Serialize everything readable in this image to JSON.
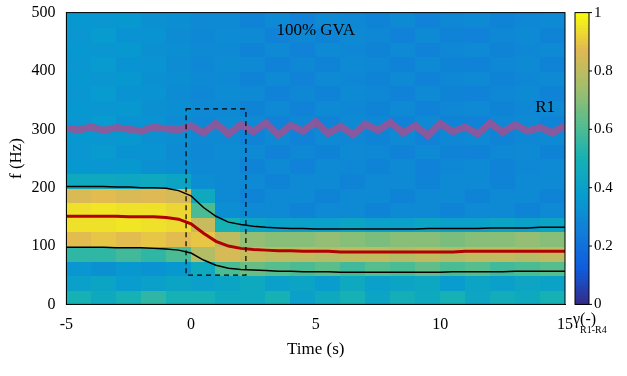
{
  "chart_data": {
    "type": "heatmap",
    "x_label": "Time (s)",
    "y_label": "f (Hz)",
    "xlim": [
      -5,
      15
    ],
    "xticks": [
      -5,
      0,
      5,
      10,
      15
    ],
    "ylim": [
      0,
      500
    ],
    "yticks": [
      0,
      100,
      200,
      300,
      400,
      500
    ],
    "grid": false,
    "x": [
      -5,
      -4.5,
      -4,
      -3.5,
      -3,
      -2.5,
      -2,
      -1.5,
      -1,
      -0.5,
      0,
      0.5,
      1,
      1.5,
      2,
      2.5,
      3,
      3.5,
      4,
      4.5,
      5,
      5.5,
      6,
      6.5,
      7,
      7.5,
      8,
      8.5,
      9,
      9.5,
      10,
      10.5,
      11,
      11.5,
      12,
      12.5,
      13,
      13.5,
      14,
      14.5,
      15
    ],
    "series": [
      {
        "name": "R1",
        "type": "line",
        "color": "#b24a8a",
        "line_style": "solid",
        "values": [
          302,
          299,
          304,
          298,
          303,
          300,
          297,
          304,
          301,
          299,
          306,
          294,
          310,
          292,
          308,
          296,
          311,
          290,
          307,
          297,
          313,
          293,
          305,
          291,
          309,
          298,
          312,
          294,
          306,
          289,
          310,
          296,
          304,
          292,
          311,
          295,
          308,
          297,
          303,
          294,
          306
        ]
      },
      {
        "type": "line",
        "color": "#000000",
        "line_style": "solid",
        "values": [
          202,
          202,
          202,
          202,
          201,
          201,
          200,
          200,
          199,
          195,
          186,
          166,
          151,
          141,
          137,
          134,
          132,
          131,
          130,
          130,
          129,
          129,
          129,
          129,
          129,
          129,
          129,
          129,
          129,
          130,
          130,
          130,
          130,
          130,
          131,
          131,
          131,
          131,
          132,
          132,
          132
        ]
      },
      {
        "type": "line",
        "color": "#000000",
        "line_style": "solid",
        "values": [
          98,
          98,
          98,
          98,
          97,
          97,
          97,
          96,
          95,
          93,
          88,
          76,
          67,
          62,
          60,
          59,
          58,
          57,
          57,
          56,
          56,
          56,
          55,
          55,
          55,
          55,
          55,
          55,
          55,
          55,
          55,
          56,
          56,
          56,
          56,
          56,
          57,
          57,
          57,
          57,
          57
        ]
      },
      {
        "type": "line",
        "color": "#b00000",
        "line_style": "solid",
        "values": [
          151,
          151,
          151,
          151,
          151,
          150,
          150,
          150,
          149,
          146,
          138,
          122,
          108,
          100,
          96,
          94,
          93,
          92,
          92,
          91,
          91,
          91,
          90,
          90,
          90,
          90,
          90,
          90,
          90,
          90,
          90,
          90,
          91,
          91,
          91,
          91,
          91,
          91,
          91,
          91,
          91
        ]
      }
    ],
    "annotations": [
      {
        "text": "100% GVA",
        "x": 5,
        "y": 470
      },
      {
        "text": "R1",
        "x": 14.2,
        "y": 338
      }
    ],
    "box": {
      "x": [
        -0.2,
        2.2
      ],
      "y": [
        50,
        335
      ],
      "line_style": "dashed",
      "color": "#000000"
    },
    "heatmap": {
      "x_edges": [
        -5,
        -4,
        -3,
        -2,
        -1,
        0,
        1,
        2,
        3,
        4,
        5,
        6,
        7,
        8,
        9,
        10,
        11,
        12,
        13,
        14,
        15
      ],
      "y_edges": [
        0,
        25,
        50,
        75,
        100,
        125,
        150,
        175,
        200,
        225,
        250,
        275,
        300,
        325,
        350,
        375,
        400,
        425,
        450,
        475,
        500
      ],
      "cells": [
        [
          0.5,
          0.45,
          0.5,
          0.55,
          0.5,
          0.5,
          0.45,
          0.45,
          0.5,
          0.4,
          0.45,
          0.5,
          0.42,
          0.48,
          0.45,
          0.5,
          0.43,
          0.47,
          0.45,
          0.5
        ],
        [
          0.4,
          0.42,
          0.38,
          0.4,
          0.42,
          0.4,
          0.42,
          0.45,
          0.4,
          0.42,
          0.38,
          0.45,
          0.4,
          0.42,
          0.44,
          0.38,
          0.42,
          0.4,
          0.43,
          0.41
        ],
        [
          0.35,
          0.33,
          0.36,
          0.34,
          0.36,
          0.45,
          0.6,
          0.65,
          0.62,
          0.6,
          0.63,
          0.58,
          0.62,
          0.6,
          0.64,
          0.6,
          0.62,
          0.58,
          0.6,
          0.62
        ],
        [
          0.55,
          0.55,
          0.58,
          0.55,
          0.6,
          0.78,
          0.85,
          0.82,
          0.8,
          0.8,
          0.78,
          0.8,
          0.8,
          0.78,
          0.8,
          0.78,
          0.8,
          0.8,
          0.78,
          0.8
        ],
        [
          0.88,
          0.9,
          0.88,
          0.9,
          0.88,
          0.9,
          0.8,
          0.72,
          0.7,
          0.7,
          0.72,
          0.7,
          0.68,
          0.7,
          0.7,
          0.68,
          0.7,
          0.7,
          0.72,
          0.7
        ],
        [
          0.95,
          0.95,
          0.96,
          0.95,
          0.94,
          0.82,
          0.5,
          0.42,
          0.4,
          0.4,
          0.4,
          0.42,
          0.4,
          0.4,
          0.42,
          0.4,
          0.4,
          0.42,
          0.4,
          0.42
        ],
        [
          0.95,
          0.96,
          0.95,
          0.95,
          0.93,
          0.6,
          0.32,
          0.3,
          0.3,
          0.28,
          0.3,
          0.3,
          0.28,
          0.3,
          0.3,
          0.28,
          0.3,
          0.3,
          0.28,
          0.3
        ],
        [
          0.86,
          0.88,
          0.86,
          0.87,
          0.85,
          0.45,
          0.3,
          0.28,
          0.3,
          0.3,
          0.28,
          0.3,
          0.3,
          0.28,
          0.3,
          0.3,
          0.28,
          0.3,
          0.3,
          0.28
        ],
        [
          0.45,
          0.45,
          0.44,
          0.45,
          0.42,
          0.32,
          0.3,
          0.3,
          0.28,
          0.3,
          0.3,
          0.28,
          0.3,
          0.3,
          0.28,
          0.3,
          0.3,
          0.28,
          0.3,
          0.3
        ],
        [
          0.36,
          0.35,
          0.36,
          0.33,
          0.32,
          0.3,
          0.3,
          0.28,
          0.3,
          0.27,
          0.3,
          0.29,
          0.28,
          0.3,
          0.27,
          0.29,
          0.3,
          0.28,
          0.29,
          0.3
        ],
        [
          0.35,
          0.37,
          0.34,
          0.34,
          0.31,
          0.29,
          0.31,
          0.3,
          0.27,
          0.29,
          0.28,
          0.3,
          0.29,
          0.27,
          0.3,
          0.28,
          0.27,
          0.29,
          0.3,
          0.28
        ],
        [
          0.36,
          0.35,
          0.36,
          0.33,
          0.32,
          0.3,
          0.3,
          0.28,
          0.3,
          0.27,
          0.3,
          0.29,
          0.28,
          0.3,
          0.27,
          0.29,
          0.3,
          0.28,
          0.29,
          0.3
        ],
        [
          0.35,
          0.37,
          0.34,
          0.34,
          0.31,
          0.29,
          0.31,
          0.3,
          0.27,
          0.29,
          0.28,
          0.3,
          0.29,
          0.27,
          0.3,
          0.28,
          0.27,
          0.29,
          0.3,
          0.28
        ],
        [
          0.36,
          0.35,
          0.36,
          0.33,
          0.32,
          0.3,
          0.3,
          0.28,
          0.3,
          0.27,
          0.3,
          0.29,
          0.28,
          0.3,
          0.27,
          0.29,
          0.3,
          0.28,
          0.29,
          0.3
        ],
        [
          0.35,
          0.37,
          0.34,
          0.34,
          0.31,
          0.29,
          0.31,
          0.3,
          0.27,
          0.29,
          0.28,
          0.3,
          0.29,
          0.27,
          0.3,
          0.28,
          0.27,
          0.29,
          0.3,
          0.28
        ],
        [
          0.36,
          0.35,
          0.36,
          0.33,
          0.32,
          0.3,
          0.3,
          0.28,
          0.3,
          0.27,
          0.3,
          0.29,
          0.28,
          0.3,
          0.27,
          0.29,
          0.3,
          0.28,
          0.29,
          0.3
        ],
        [
          0.35,
          0.37,
          0.34,
          0.34,
          0.31,
          0.29,
          0.31,
          0.3,
          0.27,
          0.29,
          0.28,
          0.3,
          0.29,
          0.27,
          0.3,
          0.28,
          0.27,
          0.29,
          0.3,
          0.28
        ],
        [
          0.36,
          0.35,
          0.36,
          0.33,
          0.32,
          0.3,
          0.3,
          0.28,
          0.3,
          0.27,
          0.3,
          0.29,
          0.28,
          0.3,
          0.27,
          0.29,
          0.3,
          0.28,
          0.29,
          0.3
        ],
        [
          0.35,
          0.37,
          0.34,
          0.34,
          0.31,
          0.29,
          0.31,
          0.3,
          0.27,
          0.29,
          0.28,
          0.3,
          0.29,
          0.27,
          0.3,
          0.28,
          0.27,
          0.29,
          0.3,
          0.28
        ],
        [
          0.36,
          0.35,
          0.36,
          0.33,
          0.32,
          0.3,
          0.3,
          0.28,
          0.3,
          0.27,
          0.3,
          0.29,
          0.28,
          0.3,
          0.27,
          0.29,
          0.3,
          0.28,
          0.29,
          0.3
        ]
      ]
    },
    "colorbar": {
      "range": [
        0,
        1
      ],
      "ticks": [
        0,
        0.2,
        0.4,
        0.6,
        0.8,
        1
      ],
      "label": "γ(-)",
      "label_sub": "R1-R4"
    }
  }
}
